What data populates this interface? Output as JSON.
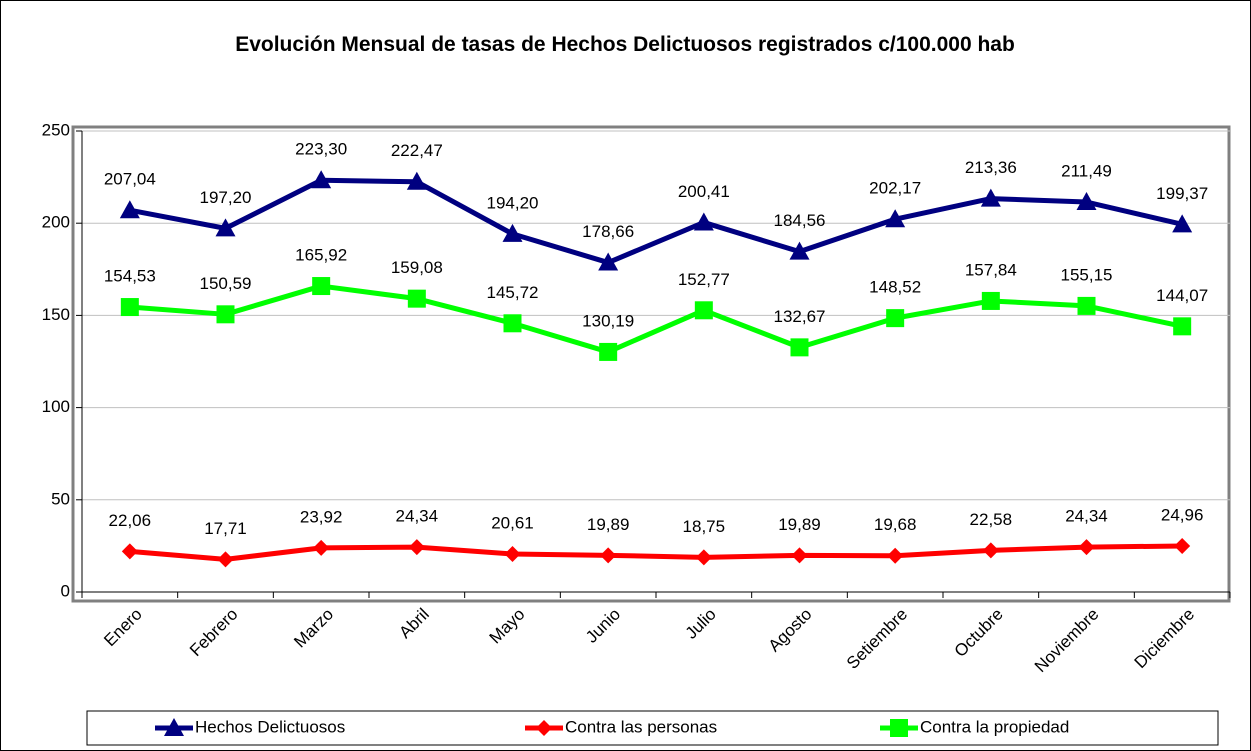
{
  "chart_data": {
    "type": "line",
    "title": "Evolución Mensual de tasas de Hechos Delictuosos registrados c/100.000 hab",
    "categories": [
      "Enero",
      "Febrero",
      "Marzo",
      "Abril",
      "Mayo",
      "Junio",
      "Julio",
      "Agosto",
      "Setiembre",
      "Octubre",
      "Noviembre",
      "Diciembre"
    ],
    "series": [
      {
        "name": "Hechos Delictuosos",
        "color": "#000080",
        "marker": "triangle",
        "values": [
          207.04,
          197.2,
          223.3,
          222.47,
          194.2,
          178.66,
          200.41,
          184.56,
          202.17,
          213.36,
          211.49,
          199.37
        ],
        "value_labels": [
          "207,04",
          "197,20",
          "223,30",
          "222,47",
          "194,20",
          "178,66",
          "200,41",
          "184,56",
          "202,17",
          "213,36",
          "211,49",
          "199,37"
        ]
      },
      {
        "name": "Contra las personas",
        "color": "#ff0000",
        "marker": "diamond",
        "values": [
          22.06,
          17.71,
          23.92,
          24.34,
          20.61,
          19.89,
          18.75,
          19.89,
          19.68,
          22.58,
          24.34,
          24.96
        ],
        "value_labels": [
          "22,06",
          "17,71",
          "23,92",
          "24,34",
          "20,61",
          "19,89",
          "18,75",
          "19,89",
          "19,68",
          "22,58",
          "24,34",
          "24,96"
        ]
      },
      {
        "name": "Contra la propiedad",
        "color": "#00ff00",
        "marker": "square",
        "values": [
          154.53,
          150.59,
          165.92,
          159.08,
          145.72,
          130.19,
          152.77,
          132.67,
          148.52,
          157.84,
          155.15,
          144.07
        ],
        "value_labels": [
          "154,53",
          "150,59",
          "165,92",
          "159,08",
          "145,72",
          "130,19",
          "152,77",
          "132,67",
          "148,52",
          "157,84",
          "155,15",
          "144,07"
        ]
      }
    ],
    "ylim": [
      0,
      250
    ],
    "yticks": [
      0,
      50,
      100,
      150,
      200,
      250
    ],
    "grid": true,
    "legend": "bottom"
  }
}
